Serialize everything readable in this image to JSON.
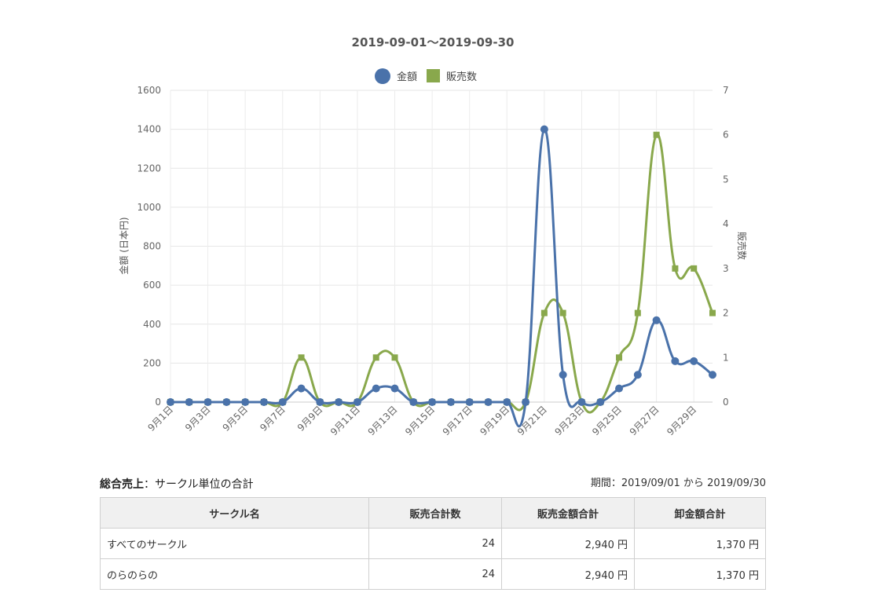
{
  "chart_data": {
    "type": "line",
    "title": "2019-09-01〜2019-09-30",
    "categories": [
      "9月1日",
      "9月2日",
      "9月3日",
      "9月4日",
      "9月5日",
      "9月6日",
      "9月7日",
      "9月8日",
      "9月9日",
      "9月10日",
      "9月11日",
      "9月12日",
      "9月13日",
      "9月14日",
      "9月15日",
      "9月16日",
      "9月17日",
      "9月18日",
      "9月19日",
      "9月20日",
      "9月21日",
      "9月22日",
      "9月23日",
      "9月24日",
      "9月25日",
      "9月26日",
      "9月27日",
      "9月28日",
      "9月29日",
      "9月30日"
    ],
    "tick_labels": [
      "9月1日",
      "9月3日",
      "9月5日",
      "9月7日",
      "9月9日",
      "9月11日",
      "9月13日",
      "9月15日",
      "9月17日",
      "9月19日",
      "9月21日",
      "9月23日",
      "9月25日",
      "9月27日",
      "9月29日"
    ],
    "series": [
      {
        "name": "金額",
        "axis": "left",
        "color": "#4a72aa",
        "marker": "circle",
        "values": [
          0,
          0,
          0,
          0,
          0,
          0,
          0,
          70,
          0,
          0,
          0,
          70,
          70,
          0,
          0,
          0,
          0,
          0,
          0,
          0,
          1400,
          140,
          0,
          0,
          70,
          140,
          420,
          210,
          210,
          140
        ]
      },
      {
        "name": "販売数",
        "axis": "right",
        "color": "#89a84c",
        "marker": "square",
        "values": [
          0,
          0,
          0,
          0,
          0,
          0,
          0,
          1,
          0,
          0,
          0,
          1,
          1,
          0,
          0,
          0,
          0,
          0,
          0,
          0,
          2,
          2,
          0,
          0,
          1,
          2,
          6,
          3,
          3,
          2
        ]
      }
    ],
    "ylabel": "金額 (日本円)",
    "y2label": "販売数",
    "ylim": [
      0,
      1600
    ],
    "y_ticks": [
      0,
      200,
      400,
      600,
      800,
      1000,
      1200,
      1400,
      1600
    ],
    "y2lim": [
      0,
      7
    ],
    "y2_ticks": [
      0,
      1,
      2,
      3,
      4,
      5,
      6,
      7
    ],
    "grid": true,
    "legend": "top-center"
  },
  "summary": {
    "title_bold": "総合売上",
    "title_rest": "：サークル単位の合計",
    "period": "期間：2019/09/01 から 2019/09/30",
    "columns": [
      "サークル名",
      "販売合計数",
      "販売金額合計",
      "卸金額合計"
    ],
    "rows": [
      {
        "name": "すべてのサークル",
        "count": "24",
        "amount": "2,940 円",
        "wholesale": "1,370 円"
      },
      {
        "name": "のらのらの",
        "count": "24",
        "amount": "2,940 円",
        "wholesale": "1,370 円"
      }
    ]
  }
}
